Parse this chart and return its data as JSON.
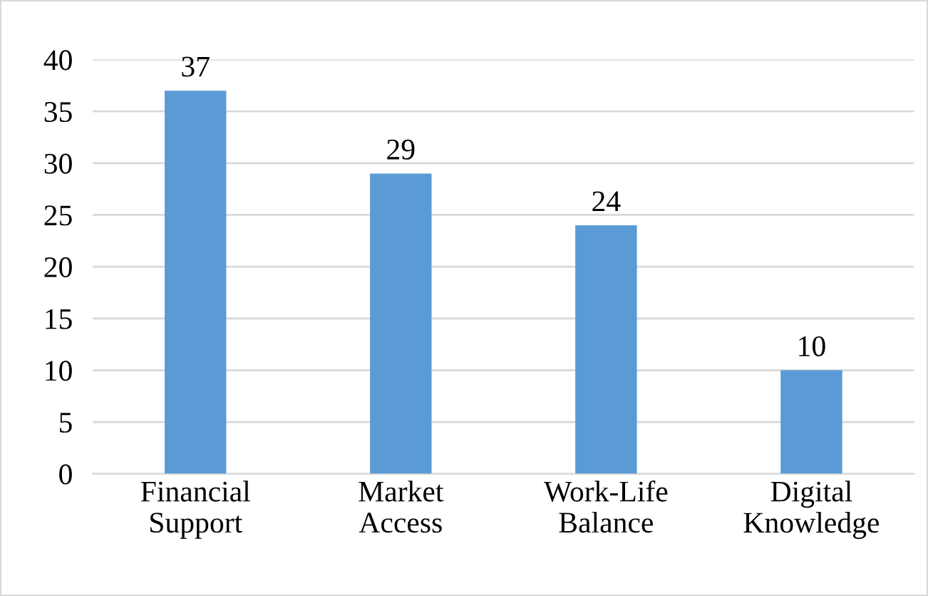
{
  "chart_data": {
    "type": "bar",
    "categories": [
      "Financial Support",
      "Market Access",
      "Work-Life Balance",
      "Digital Knowledge"
    ],
    "values": [
      37,
      29,
      24,
      10
    ],
    "color": "#5b9bd5",
    "ylim": [
      0,
      40
    ],
    "yticks": [
      0,
      5,
      10,
      15,
      20,
      25,
      30,
      35,
      40
    ],
    "grid": "y",
    "data_labels": true
  }
}
